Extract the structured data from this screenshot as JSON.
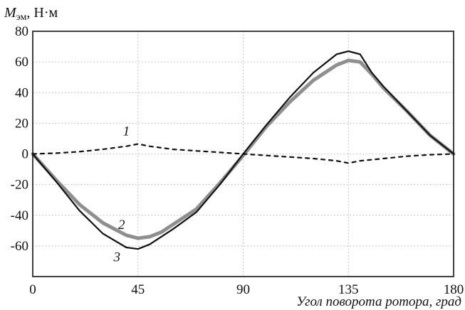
{
  "chart_data": {
    "type": "line",
    "ylabel": {
      "symbol": "M",
      "subscript": "эм",
      "unit": ", Н·м"
    },
    "xlabel": "Угол поворота ротора, град",
    "xlim": [
      0,
      180
    ],
    "ylim": [
      -80,
      80
    ],
    "xticks": [
      "0",
      "45",
      "90",
      "135",
      "180"
    ],
    "yticks": [
      "80",
      "60",
      "40",
      "20",
      "0",
      "-20",
      "-40",
      "-60"
    ],
    "grid": true,
    "series": [
      {
        "name": "1",
        "x": [
          0,
          10,
          20,
          30,
          40,
          45,
          50,
          60,
          70,
          80,
          90,
          100,
          110,
          120,
          130,
          135,
          140,
          150,
          160,
          170,
          180
        ],
        "values": [
          0,
          0.5,
          1.5,
          3,
          5,
          6.5,
          5,
          3,
          2,
          1,
          0,
          -1,
          -2,
          -3,
          -4.5,
          -6,
          -4.5,
          -3,
          -1.5,
          -0.5,
          0
        ]
      },
      {
        "name": "2",
        "x": [
          0,
          10,
          20,
          30,
          40,
          45,
          50,
          55,
          60,
          70,
          80,
          90,
          100,
          110,
          120,
          130,
          135,
          140,
          145,
          150,
          160,
          170,
          180
        ],
        "values": [
          0,
          -17,
          -33,
          -45,
          -53,
          -55,
          -54,
          -51,
          -46,
          -36,
          -19,
          -1,
          18,
          34,
          48,
          58,
          61,
          60,
          52,
          43,
          28,
          12,
          0
        ]
      },
      {
        "name": "3",
        "x": [
          0,
          10,
          20,
          30,
          40,
          45,
          50,
          55,
          60,
          70,
          80,
          90,
          100,
          110,
          120,
          130,
          135,
          140,
          145,
          150,
          160,
          170,
          180
        ],
        "values": [
          0,
          -18,
          -37,
          -52,
          -61,
          -62,
          -59,
          -54,
          -49,
          -38,
          -20,
          0,
          19,
          37,
          53,
          65,
          67,
          65,
          53,
          44,
          28,
          12,
          0
        ]
      }
    ],
    "annotations": [
      {
        "text": "1",
        "x": 40,
        "y": 12
      },
      {
        "text": "2",
        "x": 38,
        "y": -49
      },
      {
        "text": "3",
        "x": 36,
        "y": -70
      }
    ]
  }
}
